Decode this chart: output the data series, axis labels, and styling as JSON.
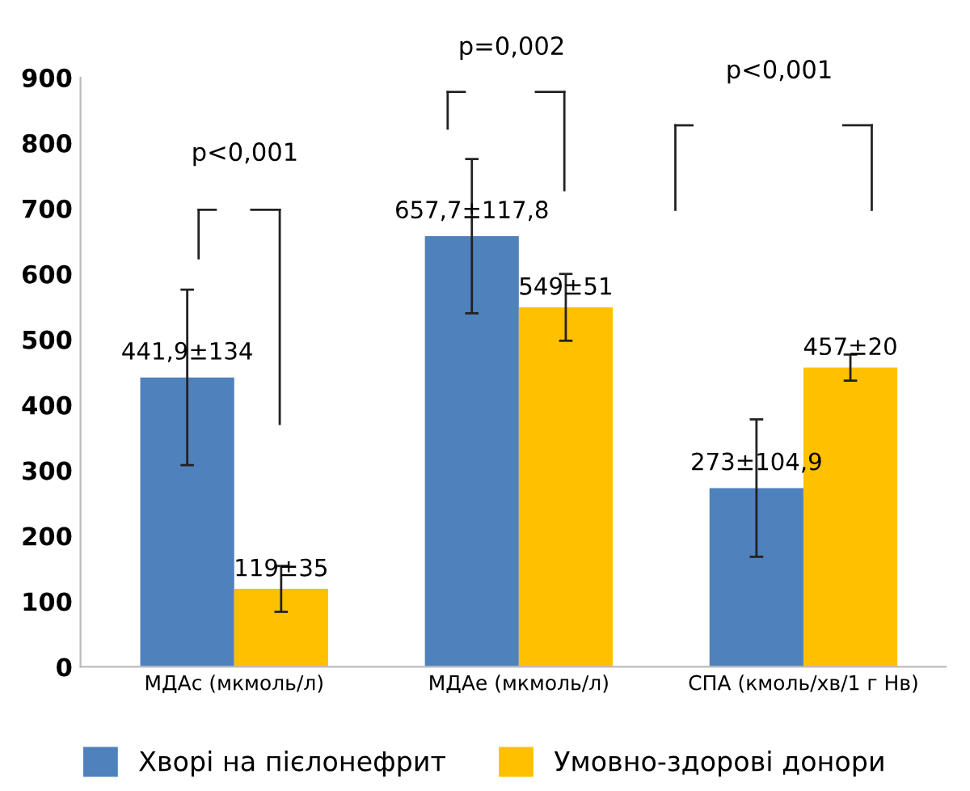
{
  "chart_data": {
    "type": "bar",
    "categories": [
      "МДАс (мкмоль/л)",
      "МДАе (мкмоль/л)",
      "СПА (кмоль/хв/1 г Нв)"
    ],
    "series": [
      {
        "name": "Хворі на пієлонефрит",
        "color": "#4f81bd",
        "values": [
          441.9,
          657.7,
          273
        ],
        "errors": [
          134,
          117.8,
          104.9
        ],
        "value_labels": [
          "441,9±134",
          "657,7±117,8",
          "273±104,9"
        ]
      },
      {
        "name": "Умовно-здорові донори",
        "color": "#ffc000",
        "values": [
          119,
          549,
          457
        ],
        "errors": [
          35,
          51,
          20
        ],
        "value_labels": [
          "119±35",
          "549±51",
          "457±20"
        ]
      }
    ],
    "ylim": [
      0,
      900
    ],
    "yticks": [
      0,
      100,
      200,
      300,
      400,
      500,
      600,
      700,
      800,
      900
    ],
    "grid": false,
    "legend": "bottom",
    "annotations": [
      "p<0,001",
      "p=0,002",
      "p<0,001"
    ]
  }
}
